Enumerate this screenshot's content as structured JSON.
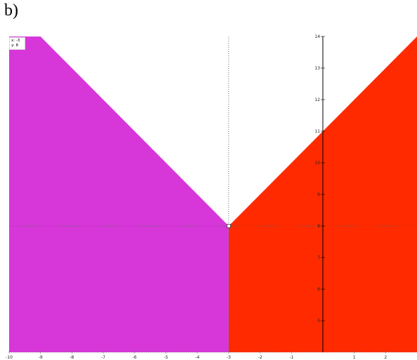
{
  "panel_label": "b)",
  "readout": {
    "x_text": "x: -3",
    "y_text": "y: 8"
  },
  "colors": {
    "left_region": "#d737d9",
    "right_region": "#ff2a00",
    "axis": "#000000",
    "guide": "#555555",
    "background": "#ffffff"
  },
  "chart_data": {
    "type": "area",
    "title": "",
    "xlabel": "",
    "ylabel": "",
    "xlim": [
      -10,
      3
    ],
    "ylim": [
      4,
      14
    ],
    "x_ticks": [
      -10,
      -9,
      -8,
      -7,
      -6,
      -5,
      -4,
      -3,
      -2,
      -1,
      1,
      2
    ],
    "y_ticks": [
      5,
      6,
      7,
      8,
      9,
      10,
      11,
      12,
      13,
      14
    ],
    "point": {
      "x": -3,
      "y": 8
    },
    "guide_lines": {
      "vertical_x": -3,
      "horizontal_y": 8
    },
    "series": [
      {
        "function": "y = -x + 5",
        "x": [
          -10,
          -3
        ],
        "y": [
          15,
          8
        ],
        "fill_below": true,
        "color": "#d737d9"
      },
      {
        "function": "y = x + 11",
        "x": [
          -3,
          3
        ],
        "y": [
          8,
          14
        ],
        "fill_below": true,
        "color": "#ff2a00"
      }
    ],
    "grid": false,
    "legend": "none"
  }
}
